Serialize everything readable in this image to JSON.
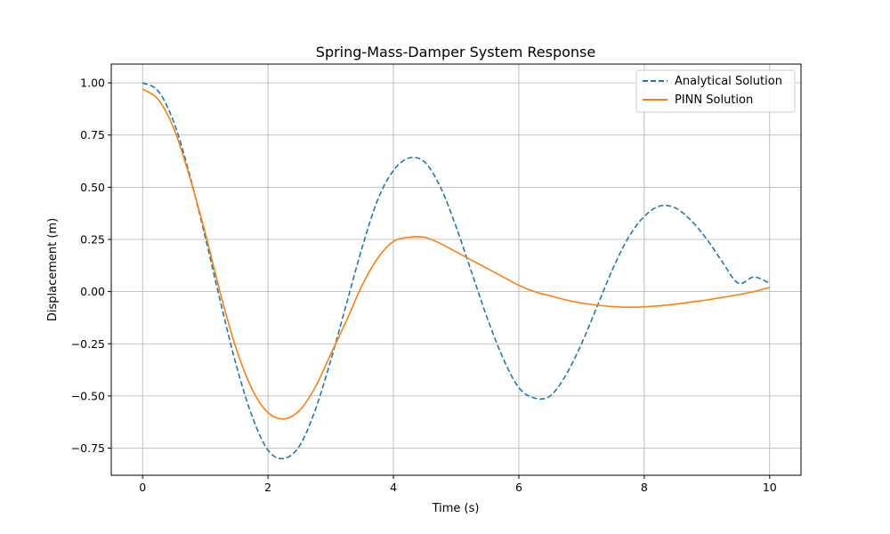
{
  "chart_data": {
    "type": "line",
    "title": "Spring-Mass-Damper System Response",
    "xlabel": "Time (s)",
    "ylabel": "Displacement (m)",
    "xlim": [
      -0.5,
      10.5
    ],
    "ylim": [
      -0.88,
      1.09
    ],
    "xticks": [
      0,
      2,
      4,
      6,
      8,
      10
    ],
    "xtick_labels": [
      "0",
      "2",
      "4",
      "6",
      "8",
      "10"
    ],
    "yticks": [
      -0.75,
      -0.5,
      -0.25,
      0.0,
      0.25,
      0.5,
      0.75,
      1.0
    ],
    "ytick_labels": [
      "−0.75",
      "−0.50",
      "−0.25",
      "0.00",
      "0.25",
      "0.50",
      "0.75",
      "1.00"
    ],
    "grid": true,
    "legend_position": "top-right",
    "series": [
      {
        "name": "Analytical Solution",
        "color": "#1f77b4",
        "style": "dashed",
        "x": [
          0,
          0.25,
          0.5,
          0.75,
          1.0,
          1.25,
          1.5,
          1.75,
          2.0,
          2.25,
          2.5,
          2.75,
          3.0,
          3.25,
          3.5,
          3.75,
          4.0,
          4.25,
          4.5,
          4.75,
          5.0,
          5.25,
          5.5,
          5.75,
          6.0,
          6.25,
          6.5,
          6.75,
          7.0,
          7.25,
          7.5,
          7.75,
          8.0,
          8.25,
          8.5,
          8.75,
          9.0,
          9.25,
          9.5,
          9.75,
          10.0
        ],
        "y": [
          1.0,
          0.96,
          0.81,
          0.56,
          0.26,
          -0.06,
          -0.36,
          -0.6,
          -0.76,
          -0.8,
          -0.74,
          -0.57,
          -0.33,
          -0.06,
          0.21,
          0.44,
          0.58,
          0.64,
          0.62,
          0.5,
          0.31,
          0.09,
          -0.13,
          -0.32,
          -0.46,
          -0.51,
          -0.5,
          -0.4,
          -0.25,
          -0.07,
          0.11,
          0.26,
          0.36,
          0.41,
          0.4,
          0.34,
          0.25,
          0.14,
          0.04,
          0.07,
          0.04
        ]
      },
      {
        "name": "PINN Solution",
        "color": "#ff7f0e",
        "style": "solid",
        "x": [
          0,
          0.25,
          0.5,
          0.75,
          1.0,
          1.25,
          1.5,
          1.75,
          2.0,
          2.25,
          2.5,
          2.75,
          3.0,
          3.25,
          3.5,
          3.75,
          4.0,
          4.25,
          4.5,
          4.75,
          5.0,
          5.25,
          5.5,
          5.75,
          6.0,
          6.25,
          6.5,
          6.75,
          7.0,
          7.25,
          7.5,
          7.75,
          8.0,
          8.25,
          8.5,
          8.75,
          9.0,
          9.25,
          9.5,
          9.75,
          10.0
        ],
        "y": [
          0.97,
          0.92,
          0.78,
          0.55,
          0.28,
          -0.02,
          -0.28,
          -0.47,
          -0.58,
          -0.61,
          -0.57,
          -0.46,
          -0.3,
          -0.14,
          0.03,
          0.16,
          0.24,
          0.26,
          0.26,
          0.23,
          0.19,
          0.15,
          0.11,
          0.07,
          0.03,
          0.0,
          -0.02,
          -0.04,
          -0.055,
          -0.065,
          -0.072,
          -0.075,
          -0.073,
          -0.068,
          -0.06,
          -0.05,
          -0.04,
          -0.028,
          -0.015,
          0.0,
          0.02
        ]
      }
    ]
  }
}
